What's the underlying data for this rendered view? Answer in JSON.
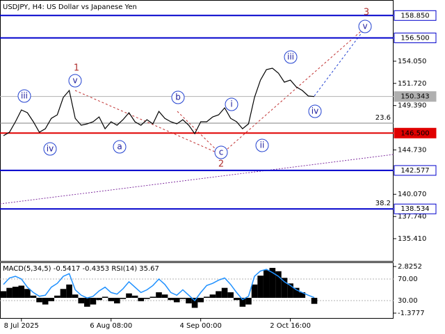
{
  "chart_data": [
    {
      "type": "line",
      "title": "USDJPY, H4:  US Dollar vs Japanese Yen",
      "categories": [
        null,
        null,
        null,
        "8 Jul 2025",
        null,
        null,
        null,
        null,
        null,
        null,
        null,
        null,
        null,
        null,
        null,
        null,
        null,
        null,
        "6 Aug 08:00",
        null,
        null,
        null,
        null,
        null,
        null,
        null,
        null,
        null,
        null,
        null,
        null,
        null,
        null,
        "4 Sep 00:00",
        null,
        null,
        null,
        null,
        null,
        null,
        null,
        null,
        null,
        null,
        null,
        null,
        null,
        null,
        "2 Oct 16:00",
        null,
        null,
        null,
        null
      ],
      "series": [
        {
          "name": "USDJPY",
          "color": "#000000",
          "values": [
            146.23,
            146.59,
            147.69,
            148.93,
            148.64,
            147.69,
            146.59,
            146.96,
            148.05,
            148.42,
            150.25,
            150.98,
            148.05,
            147.32,
            147.47,
            147.69,
            148.2,
            146.96,
            147.69,
            147.32,
            147.91,
            148.64,
            147.69,
            147.32,
            147.91,
            147.47,
            148.78,
            148.05,
            147.69,
            147.47,
            147.91,
            147.32,
            146.44,
            147.69,
            147.69,
            148.2,
            148.42,
            149.15,
            148.05,
            147.69,
            146.96,
            147.47,
            150.25,
            152.07,
            153.17,
            153.32,
            152.8,
            151.85,
            152.07,
            151.34,
            150.98,
            150.39,
            150.343
          ]
        }
      ],
      "ylim": [
        133.07,
        160.48
      ],
      "yticks": [
        {
          "value": 154.05,
          "label": "154.050"
        },
        {
          "value": 151.72,
          "label": "151.720"
        },
        {
          "value": 149.39,
          "label": "149.390"
        },
        {
          "value": 144.73,
          "label": "144.730"
        },
        {
          "value": 140.07,
          "label": "140.070"
        },
        {
          "value": 137.74,
          "label": "137.740"
        },
        {
          "value": 135.41,
          "label": "135.410"
        }
      ],
      "levels": [
        {
          "value": 158.85,
          "label": "158.850",
          "color": "#0000cc"
        },
        {
          "value": 156.5,
          "label": "156.500",
          "color": "#0000cc"
        },
        {
          "value": 146.5,
          "label": "146.500",
          "color": "#e00000"
        },
        {
          "value": 142.577,
          "label": "142.577",
          "color": "#0000cc"
        },
        {
          "value": 138.534,
          "label": "138.534",
          "color": "#0000cc"
        },
        {
          "value": 150.343,
          "label": "150.343",
          "color": "#b0b0b0"
        }
      ],
      "fib_levels": [
        {
          "value": 147.54,
          "label": "23.6"
        },
        {
          "value": 138.534,
          "label": "38.2"
        }
      ],
      "annotations": [
        {
          "text": "iii"
        },
        {
          "text": "v"
        },
        {
          "text": "iv"
        },
        {
          "text": "a"
        },
        {
          "text": "b"
        },
        {
          "text": "c"
        },
        {
          "text": "i"
        },
        {
          "text": "ii"
        },
        {
          "text": "iii"
        },
        {
          "text": "iv"
        },
        {
          "text": "v"
        },
        {
          "text": "1"
        },
        {
          "text": "2"
        },
        {
          "text": "3"
        }
      ]
    },
    {
      "type": "bar",
      "title": "MACD(5,34,5) -0.5417 -0.4353 RSI(14) 35.67",
      "series": [
        {
          "name": "MACD",
          "color": "#000000",
          "values": [
            0.6,
            0.9,
            1.0,
            1.1,
            0.8,
            0.2,
            -0.4,
            -0.6,
            -0.3,
            0.2,
            0.8,
            1.2,
            0.3,
            -0.5,
            -0.8,
            -0.6,
            -0.2,
            0.1,
            -0.3,
            -0.5,
            -0.1,
            0.4,
            0.2,
            -0.3,
            -0.1,
            0.1,
            0.5,
            0.3,
            -0.2,
            -0.4,
            -0.1,
            -0.5,
            -0.9,
            -0.4,
            0.1,
            0.3,
            0.6,
            0.9,
            0.5,
            -0.2,
            -0.8,
            -0.6,
            1.2,
            2.0,
            2.5,
            2.7,
            2.4,
            1.8,
            1.3,
            0.9,
            0.5,
            0.0,
            -0.5417
          ]
        },
        {
          "name": "RSI(14)",
          "color": "#1e90ff",
          "axis": "y2",
          "values": [
            60,
            72,
            75,
            70,
            55,
            45,
            38,
            40,
            55,
            62,
            75,
            80,
            50,
            40,
            35,
            38,
            48,
            55,
            45,
            42,
            52,
            65,
            55,
            45,
            50,
            58,
            70,
            60,
            45,
            40,
            50,
            40,
            30,
            45,
            58,
            62,
            68,
            72,
            60,
            45,
            32,
            38,
            75,
            85,
            88,
            82,
            75,
            65,
            58,
            50,
            45,
            40,
            35.67
          ]
        }
      ],
      "ylim": [
        -1.88,
        3.139
      ],
      "yticks": [
        2.8252,
        -1.3777
      ],
      "y2lim": [
        -3.5,
        99.7
      ],
      "y2ticks": [
        {
          "value": 70,
          "label": "70.00"
        },
        {
          "value": 30,
          "label": "30.00"
        }
      ]
    }
  ]
}
